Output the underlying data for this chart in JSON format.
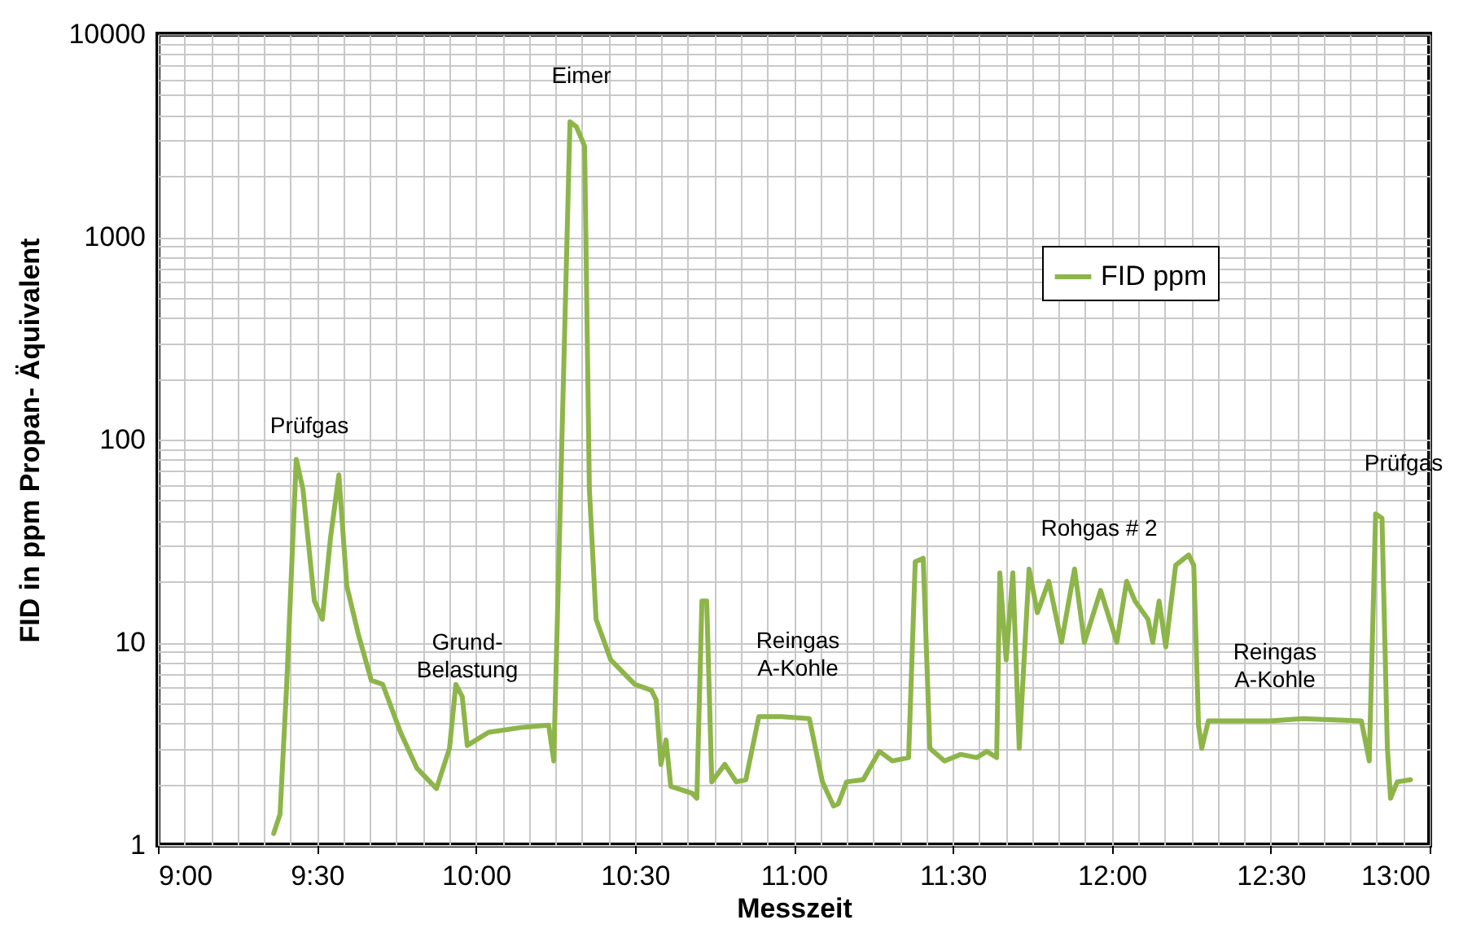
{
  "chart_data": {
    "type": "line",
    "xlabel": "Messzeit",
    "ylabel": "FID in ppm Propan- Äquivalent",
    "x": [
      9.364,
      9.384,
      9.405,
      9.435,
      9.456,
      9.492,
      9.517,
      9.543,
      9.569,
      9.594,
      9.63,
      9.671,
      9.707,
      9.763,
      9.814,
      9.876,
      9.917,
      9.937,
      9.957,
      9.973,
      10.04,
      10.142,
      10.229,
      10.245,
      10.296,
      10.316,
      10.342,
      10.357,
      10.378,
      10.424,
      10.5,
      10.552,
      10.567,
      10.582,
      10.598,
      10.613,
      10.68,
      10.695,
      10.711,
      10.726,
      10.742,
      10.783,
      10.819,
      10.849,
      10.89,
      10.962,
      11.049,
      11.09,
      11.125,
      11.14,
      11.166,
      11.218,
      11.269,
      11.31,
      11.361,
      11.382,
      11.407,
      11.428,
      11.474,
      11.525,
      11.576,
      11.607,
      11.638,
      11.648,
      11.668,
      11.689,
      11.709,
      11.74,
      11.766,
      11.802,
      11.842,
      11.883,
      11.914,
      11.965,
      12.016,
      12.047,
      12.073,
      12.114,
      12.129,
      12.149,
      12.17,
      12.201,
      12.242,
      12.258,
      12.273,
      12.283,
      12.304,
      12.499,
      12.6,
      12.785,
      12.81,
      12.83,
      12.85,
      12.867,
      12.877,
      12.898,
      12.94
    ],
    "series": [
      {
        "name": "FID ppm",
        "color": "#8db54a",
        "values": [
          1.14,
          1.42,
          6.2,
          80,
          57,
          16,
          13,
          33,
          67,
          19,
          11,
          6.5,
          6.2,
          3.6,
          2.4,
          1.9,
          3.0,
          6.2,
          5.4,
          3.1,
          3.6,
          3.8,
          3.9,
          2.6,
          3700,
          3500,
          2800,
          57,
          13,
          8.2,
          6.2,
          5.8,
          5.2,
          2.5,
          3.3,
          1.95,
          1.8,
          1.7,
          16,
          16,
          2.05,
          2.5,
          2.05,
          2.1,
          4.3,
          4.3,
          4.2,
          2.05,
          1.56,
          1.6,
          2.05,
          2.1,
          2.9,
          2.6,
          2.7,
          25,
          26,
          3.0,
          2.6,
          2.8,
          2.7,
          2.9,
          2.7,
          22,
          8.2,
          22,
          3.0,
          23,
          14,
          20,
          10,
          23,
          10,
          18,
          10,
          20,
          16,
          13,
          10,
          16,
          9.5,
          24,
          27,
          24,
          3.9,
          3.0,
          4.1,
          4.1,
          4.2,
          4.1,
          2.6,
          43,
          41,
          3.0,
          1.7,
          2.05,
          2.1
        ]
      }
    ],
    "xlim": [
      9,
      13
    ],
    "xticks": [
      {
        "value": 9,
        "label": "9:00"
      },
      {
        "value": 9.5,
        "label": "9:30"
      },
      {
        "value": 10,
        "label": "10:00"
      },
      {
        "value": 10.5,
        "label": "10:30"
      },
      {
        "value": 11,
        "label": "11:00"
      },
      {
        "value": 11.5,
        "label": "11:30"
      },
      {
        "value": 12,
        "label": "12:00"
      },
      {
        "value": 12.5,
        "label": "12:30"
      },
      {
        "value": 13,
        "label": "13:00"
      }
    ],
    "ylim": [
      1,
      10000
    ],
    "yticks": [
      1,
      10,
      100,
      1000,
      10000
    ],
    "log": "y",
    "grid": true,
    "legend": "top right",
    "marker": "none",
    "line_style": "solid",
    "annotations": [
      "Prüfgas",
      "Grund-\nBelastung",
      "Eimer",
      "Reingas\nA-Kohle",
      "Rohgas # 2",
      "Reingas\nA-Kohle",
      "Prüfgas"
    ]
  }
}
